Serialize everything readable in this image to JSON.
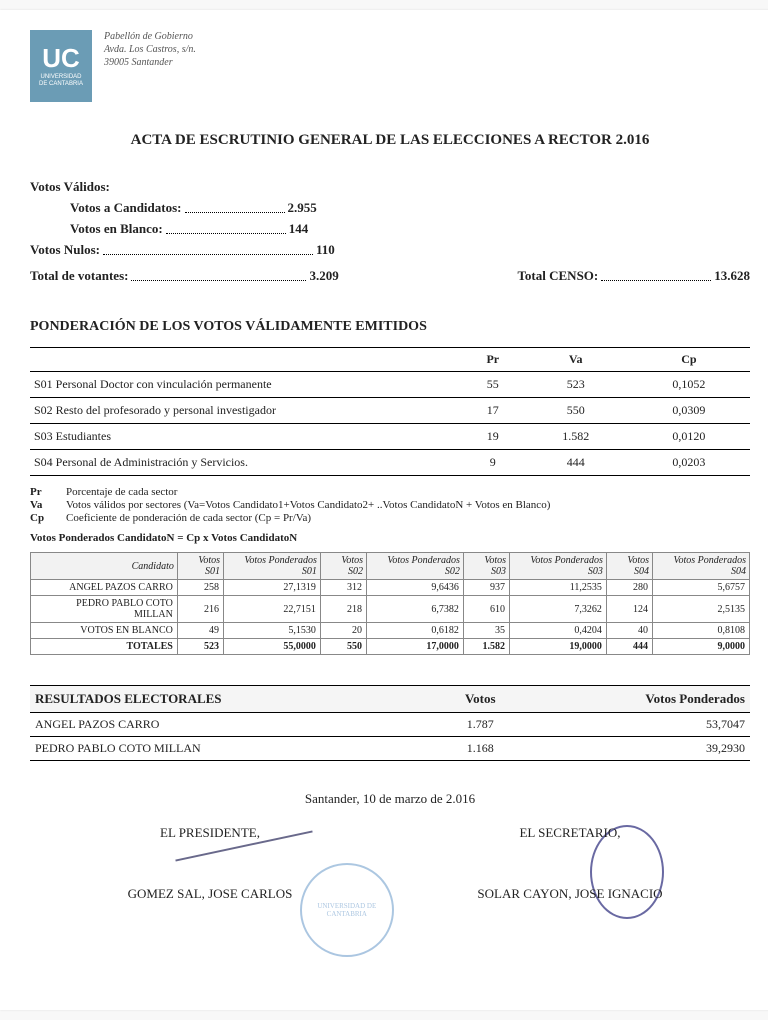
{
  "header": {
    "logo_main": "UC",
    "logo_sub1": "UNIVERSIDAD",
    "logo_sub2": "DE CANTABRIA",
    "addr1": "Pabellón de Gobierno",
    "addr2": "Avda. Los Castros, s/n.",
    "addr3": "39005 Santander"
  },
  "title": "ACTA DE ESCRUTINIO GENERAL DE LAS ELECCIONES A RECTOR 2.016",
  "votes": {
    "heading": "Votos Válidos:",
    "candidatos_lbl": "Votos a Candidatos:",
    "candidatos_val": "2.955",
    "blanco_lbl": "Votos en Blanco:",
    "blanco_val": "144",
    "nulos_lbl": "Votos Nulos:",
    "nulos_val": "110",
    "total_lbl": "Total de votantes:",
    "total_val": "3.209",
    "censo_lbl": "Total CENSO:",
    "censo_val": "13.628"
  },
  "pond": {
    "heading": "PONDERACIÓN DE LOS VOTOS VÁLIDAMENTE EMITIDOS",
    "col_pr": "Pr",
    "col_va": "Va",
    "col_cp": "Cp",
    "rows": [
      {
        "label": "S01 Personal Doctor con vinculación permanente",
        "pr": "55",
        "va": "523",
        "cp": "0,1052"
      },
      {
        "label": "S02 Resto del profesorado y personal investigador",
        "pr": "17",
        "va": "550",
        "cp": "0,0309"
      },
      {
        "label": "S03 Estudiantes",
        "pr": "19",
        "va": "1.582",
        "cp": "0,0120"
      },
      {
        "label": "S04 Personal de Administración y Servicios.",
        "pr": "9",
        "va": "444",
        "cp": "0,0203"
      }
    ]
  },
  "legend": {
    "pr_k": "Pr",
    "pr_v": "Porcentaje de cada sector",
    "va_k": "Va",
    "va_v": "Votos válidos por sectores (Va=Votos Candidato1+Votos Candidato2+ ..Votos CandidatoN + Votos en Blanco)",
    "cp_k": "Cp",
    "cp_v": "Coeficiente de ponderación de cada sector (Cp = Pr/Va)"
  },
  "formula": "Votos Ponderados CandidatoN = Cp x Votos CandidatoN",
  "detail": {
    "h_cand": "Candidato",
    "h_s01": "Votos S01",
    "h_p01": "Votos Ponderados S01",
    "h_s02": "Votos S02",
    "h_p02": "Votos Ponderados S02",
    "h_s03": "Votos S03",
    "h_p03": "Votos Ponderados S03",
    "h_s04": "Votos S04",
    "h_p04": "Votos Ponderados S04",
    "rows": [
      {
        "c": "ANGEL PAZOS CARRO",
        "s01": "258",
        "p01": "27,1319",
        "s02": "312",
        "p02": "9,6436",
        "s03": "937",
        "p03": "11,2535",
        "s04": "280",
        "p04": "5,6757"
      },
      {
        "c": "PEDRO PABLO COTO MILLAN",
        "s01": "216",
        "p01": "22,7151",
        "s02": "218",
        "p02": "6,7382",
        "s03": "610",
        "p03": "7,3262",
        "s04": "124",
        "p04": "2,5135"
      },
      {
        "c": "VOTOS EN BLANCO",
        "s01": "49",
        "p01": "5,1530",
        "s02": "20",
        "p02": "0,6182",
        "s03": "35",
        "p03": "0,4204",
        "s04": "40",
        "p04": "0,8108"
      }
    ],
    "tot": {
      "c": "TOTALES",
      "s01": "523",
      "p01": "55,0000",
      "s02": "550",
      "p02": "17,0000",
      "s03": "1.582",
      "p03": "19,0000",
      "s04": "444",
      "p04": "9,0000"
    }
  },
  "results": {
    "h1": "RESULTADOS ELECTORALES",
    "h2": "Votos",
    "h3": "Votos Ponderados",
    "rows": [
      {
        "name": "ANGEL PAZOS CARRO",
        "v": "1.787",
        "p": "53,7047"
      },
      {
        "name": "PEDRO PABLO COTO MILLAN",
        "v": "1.168",
        "p": "39,2930"
      }
    ]
  },
  "sig": {
    "date": "Santander, 10 de marzo de 2.016",
    "pres_title": "EL PRESIDENTE,",
    "pres_name": "GOMEZ SAL, JOSE CARLOS",
    "sec_title": "EL SECRETARIO,",
    "sec_name": "SOLAR CAYON, JOSE IGNACIO",
    "stamp": "UNIVERSIDAD DE CANTABRIA"
  }
}
